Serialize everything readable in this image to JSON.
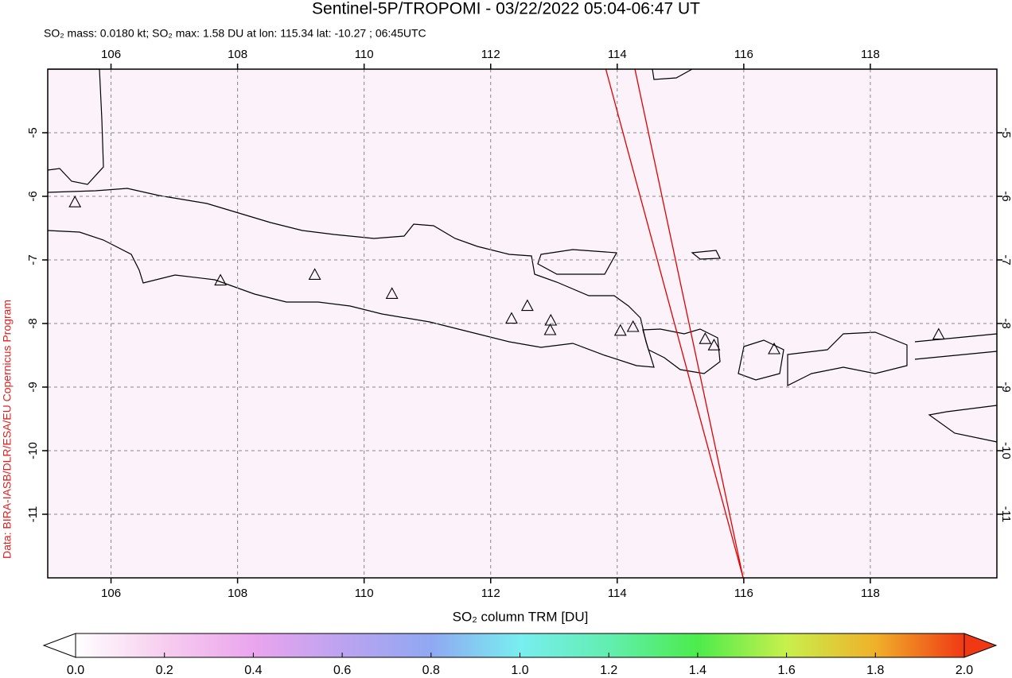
{
  "title": "Sentinel-5P/TROPOMI - 03/22/2022 05:04-06:47 UT",
  "subtitle": "SO₂ mass: 0.0180 kt; SO₂ max: 1.58 DU at lon: 115.34 lat: -10.27 ; 06:45UTC",
  "credit": "Data: BIRA-IASB/DLR/ESA/EU Copernicus Program",
  "map": {
    "xlim": [
      105,
      120
    ],
    "ylim": [
      -12,
      -4
    ],
    "xticks": [
      106,
      108,
      110,
      112,
      114,
      116,
      118
    ],
    "yticks": [
      -5,
      -6,
      -7,
      -8,
      -9,
      -10,
      -11
    ],
    "grid": true,
    "volcanoes": {
      "lon": [
        105.43,
        107.73,
        109.22,
        110.44,
        112.33,
        112.58,
        112.95,
        112.94,
        114.05,
        114.25,
        115.39,
        115.53,
        116.48,
        119.08
      ],
      "lat": [
        -6.09,
        -7.32,
        -7.23,
        -7.53,
        -7.92,
        -7.72,
        -7.95,
        -8.1,
        -8.11,
        -8.05,
        -8.24,
        -8.34,
        -8.4,
        -8.17
      ]
    },
    "swath_color": "#e00000",
    "swath_edges": [
      {
        "lon": [
          113.82,
          115.99
        ],
        "lat": [
          -4,
          -12
        ]
      },
      {
        "lon": [
          114.28,
          115.99
        ],
        "lat": [
          -4,
          -12
        ]
      }
    ]
  },
  "colorbar": {
    "label": "SO₂ column TRM [DU]",
    "lim": [
      0,
      2
    ],
    "ticks": [
      {
        "value": 0,
        "label": "0.0"
      },
      0.2,
      0.4,
      0.6,
      0.8,
      {
        "value": 1,
        "label": "1.0"
      },
      1.2,
      1.4,
      1.6,
      1.8,
      {
        "value": 2,
        "label": "2.0"
      }
    ],
    "colors": [
      "#ffffff",
      "#f7cdef",
      "#eaa5ee",
      "#bca3f0",
      "#90a8f2",
      "#78eef0",
      "#62eeb0",
      "#4cec4c",
      "#c8f04c",
      "#f0b02a",
      "#f03814"
    ]
  }
}
